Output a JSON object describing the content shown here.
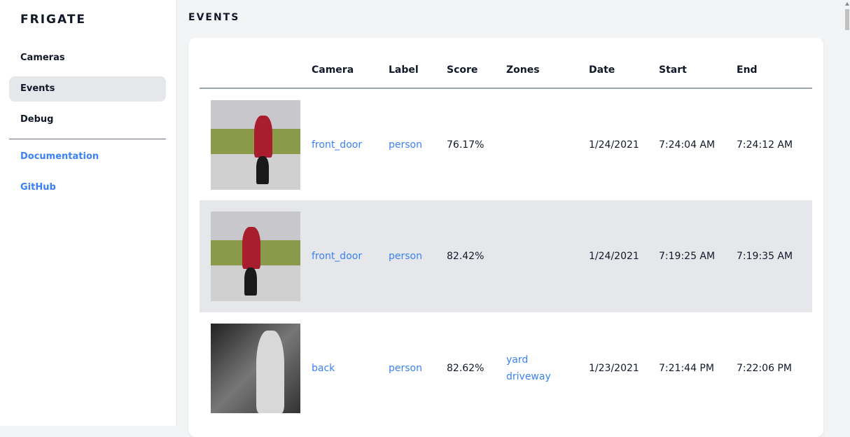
{
  "app": {
    "title": "FRIGATE"
  },
  "sidebar": {
    "items": [
      {
        "label": "Cameras"
      },
      {
        "label": "Events",
        "active": true
      },
      {
        "label": "Debug"
      }
    ],
    "links": [
      {
        "label": "Documentation"
      },
      {
        "label": "GitHub"
      }
    ]
  },
  "page": {
    "title": "EVENTS"
  },
  "table": {
    "columns": [
      "",
      "Camera",
      "Label",
      "Score",
      "Zones",
      "Date",
      "Start",
      "End"
    ],
    "rows": [
      {
        "camera": "front_door",
        "label": "person",
        "score": "76.17%",
        "zones": [
          "",
          ""
        ],
        "date": "1/24/2021",
        "start": "7:24:04 AM",
        "end": "7:24:12 AM"
      },
      {
        "camera": "front_door",
        "label": "person",
        "score": "82.42%",
        "zones": [
          "",
          ""
        ],
        "date": "1/24/2021",
        "start": "7:19:25 AM",
        "end": "7:19:35 AM"
      },
      {
        "camera": "back",
        "label": "person",
        "score": "82.62%",
        "zones": [
          "yard",
          "driveway"
        ],
        "date": "1/23/2021",
        "start": "7:21:44 PM",
        "end": "7:22:06 PM"
      }
    ]
  },
  "colors": {
    "link": "#3b82f6",
    "active_bg": "#e5e7eb"
  }
}
